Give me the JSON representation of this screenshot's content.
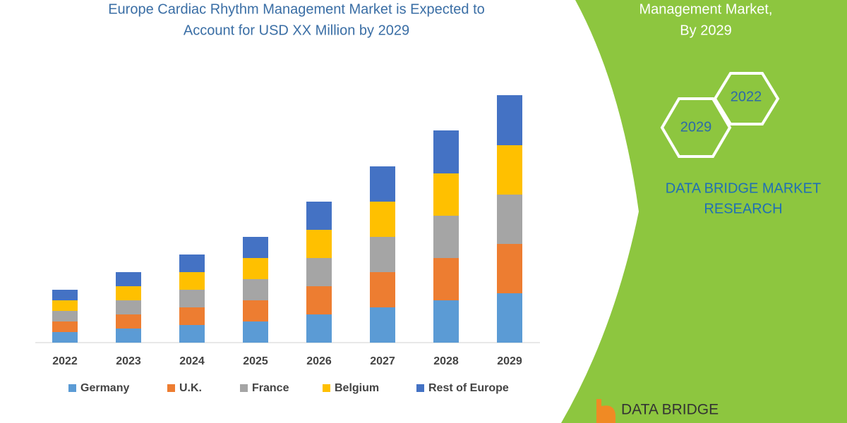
{
  "chart_data": {
    "type": "bar",
    "stacked": true,
    "title": [
      "Europe Cardiac Rhythm Management Market is Expected to",
      "Account for  USD XX Million by 2029"
    ],
    "categories": [
      "2022",
      "2023",
      "2024",
      "2025",
      "2026",
      "2027",
      "2028",
      "2029"
    ],
    "series": [
      {
        "name": "Germany",
        "color": "#5b9bd5",
        "values": [
          15,
          20,
          25,
          30,
          40,
          50,
          60,
          70
        ]
      },
      {
        "name": "U.K.",
        "color": "#ed7d31",
        "values": [
          15,
          20,
          25,
          30,
          40,
          50,
          60,
          70
        ]
      },
      {
        "name": "France",
        "color": "#a5a5a5",
        "values": [
          15,
          20,
          25,
          30,
          40,
          50,
          60,
          70
        ]
      },
      {
        "name": "Belgium",
        "color": "#ffc000",
        "values": [
          15,
          20,
          25,
          30,
          40,
          50,
          60,
          70
        ]
      },
      {
        "name": "Rest of Europe",
        "color": "#4472c4",
        "values": [
          15,
          20,
          25,
          30,
          40,
          50,
          61,
          71
        ]
      }
    ],
    "ylim": [
      0,
      360
    ]
  },
  "panel": {
    "heading": [
      "Management Market,",
      "By 2029"
    ],
    "hexagons": [
      "2022",
      "2029"
    ],
    "brand": [
      "DATA BRIDGE MARKET",
      "RESEARCH"
    ],
    "logo": "DATA BRIDGE"
  }
}
